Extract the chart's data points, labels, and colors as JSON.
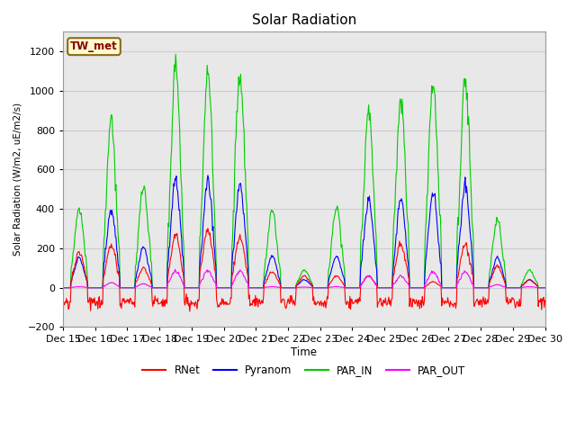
{
  "title": "Solar Radiation",
  "ylabel": "Solar Radiation (W/m2, uE/m2/s)",
  "xlabel": "Time",
  "ylim": [
    -200,
    1300
  ],
  "yticks": [
    -200,
    0,
    200,
    400,
    600,
    800,
    1000,
    1200
  ],
  "xlim_start": 0,
  "xlim_end": 360,
  "station_label": "TW_met",
  "station_label_color": "#8B0000",
  "station_box_facecolor": "#FFFACD",
  "station_box_edgecolor": "#8B6914",
  "series": {
    "RNet": {
      "color": "red",
      "lw": 0.8
    },
    "Pyranom": {
      "color": "blue",
      "lw": 0.8
    },
    "PAR_IN": {
      "color": "#00cc00",
      "lw": 0.8
    },
    "PAR_OUT": {
      "color": "magenta",
      "lw": 0.8
    }
  },
  "xtick_labels": [
    "Dec 15",
    "Dec 16",
    "Dec 17",
    "Dec 18",
    "Dec 19",
    "Dec 20",
    "Dec 21",
    "Dec 22",
    "Dec 23",
    "Dec 24",
    "Dec 25",
    "Dec 26",
    "Dec 27",
    "Dec 28",
    "Dec 29",
    "Dec 30"
  ],
  "xtick_positions": [
    0,
    24,
    48,
    72,
    96,
    120,
    144,
    168,
    192,
    216,
    240,
    264,
    288,
    312,
    336,
    360
  ],
  "grid_color": "#cccccc",
  "ax_facecolor": "#e8e8e8",
  "fig_facecolor": "#ffffff",
  "n_days": 15
}
